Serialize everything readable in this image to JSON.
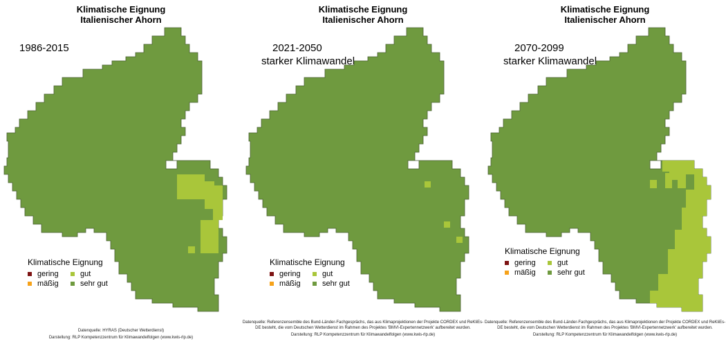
{
  "colors": {
    "sehr_gut": "#6f9a3f",
    "gut": "#a9c63a",
    "maessig": "#f6a21a",
    "gering": "#7d1313",
    "border": "#4a5f33"
  },
  "panels": [
    {
      "title_line1": "Klimatische Eignung",
      "title_line2": "Italienischer Ahorn",
      "period_line1": "1986-2015",
      "period_line2": "",
      "gut_level": 0.15,
      "credit_source": "Datenquelle: HYRAS (Deutscher Wetterdienst)",
      "credit_author": "Darstellung: RLP Kompetenzzentrum für Klimawandelfolgen (www.kwis-rlp.de)"
    },
    {
      "title_line1": "Klimatische Eignung",
      "title_line2": "Italienischer Ahorn",
      "period_line1": "2021-2050",
      "period_line2": "starker Klimawandel",
      "gut_level": 0.02,
      "credit_source": "Datenquelle: Referenzensemble des Bund-Länder-Fachgesprächs, das aus Klimaprojektionen der Projekte CORDEX und ReKliEs-DE besteht, die vom Deutschen Wetterdienst im Rahmen des Projektes 'BMVI-Expertennetzwerk' aufbereitet wurden.",
      "credit_author": "Darstellung: RLP Kompetenzzentrum für Klimawandelfolgen (www.kwis-rlp.de)"
    },
    {
      "title_line1": "Klimatische Eignung",
      "title_line2": "Italienischer Ahorn",
      "period_line1": "2070-2099",
      "period_line2": "starker Klimawandel",
      "gut_level": 0.35,
      "credit_source": "Datenquelle: Referenzensemble des Bund-Länder-Fachgesprächs, das aus Klimaprojektionen der Projekte CORDEX und ReKliEs-DE besteht, die vom Deutschen Wetterdienst im Rahmen des Projektes 'BMVI-Expertennetzwerk' aufbereitet wurden.",
      "credit_author": "Darstellung: RLP Kompetenzzentrum für Klimawandelfolgen (www.kwis-rlp.de)"
    }
  ],
  "legend": {
    "title": "Klimatische Eignung",
    "items": [
      {
        "label": "gering",
        "color": "#7d1313"
      },
      {
        "label": "gut",
        "color": "#a9c63a"
      },
      {
        "label": "mäßig",
        "color": "#f6a21a"
      },
      {
        "label": "sehr gut",
        "color": "#6f9a3f"
      }
    ]
  }
}
